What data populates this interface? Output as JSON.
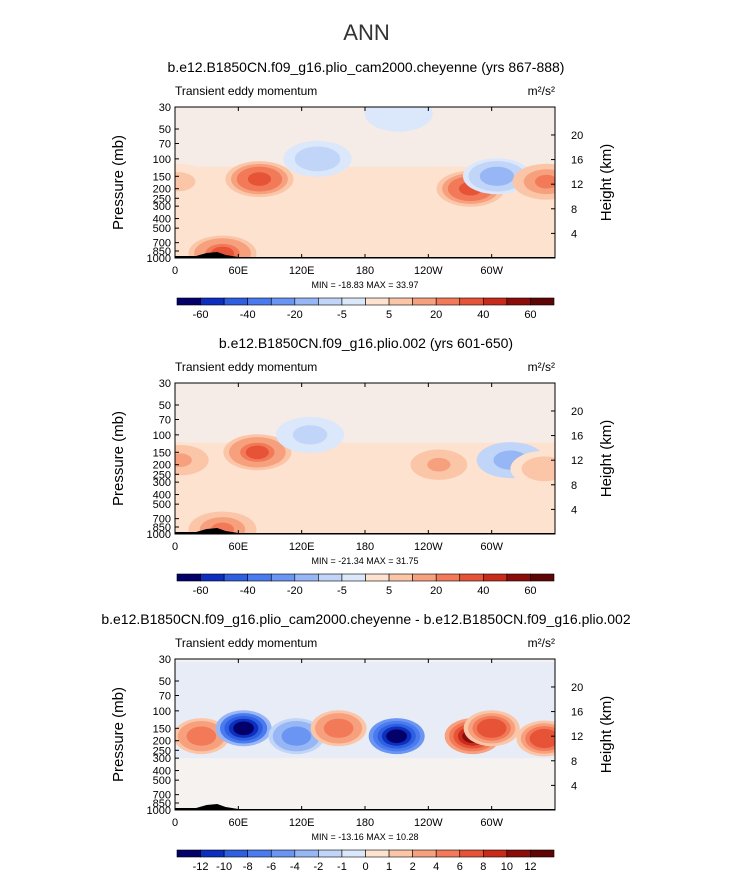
{
  "page_title": "ANN",
  "chart_data": [
    {
      "type": "heatmap",
      "title": "b.e12.B1850CN.f09_g16.plio_cam2000.cheyenne (yrs 867-888)",
      "subtitle": "Transient eddy momentum",
      "units": "m²/s²",
      "xlabel": "",
      "ylabel": "Pressure (mb)",
      "ylabel_right": "Height (km)",
      "x_ticks": [
        "0",
        "60E",
        "120E",
        "180",
        "120W",
        "60W"
      ],
      "y_ticks": [
        "30",
        "50",
        "70",
        "100",
        "150",
        "200",
        "250",
        "300",
        "400",
        "500",
        "700",
        "850",
        "1000"
      ],
      "y_ticks_right": [
        "20",
        "16",
        "12",
        "8",
        "4"
      ],
      "ylim": [
        1000,
        30
      ],
      "y_scale": "log",
      "stats": "MIN = -18.83   MAX =  33.97",
      "min": -18.83,
      "max": 33.97,
      "colorbar_labels": [
        "-60",
        "-40",
        "-20",
        "-5",
        "5",
        "20",
        "40",
        "60"
      ],
      "features": [
        {
          "lon": 3,
          "p": 170,
          "value": 10
        },
        {
          "lon": 80,
          "p": 160,
          "value": 35
        },
        {
          "lon": 135,
          "p": 100,
          "value": -12
        },
        {
          "lon": 212,
          "p": 35,
          "value": -5
        },
        {
          "lon": 280,
          "p": 200,
          "value": 34
        },
        {
          "lon": 305,
          "p": 150,
          "value": -18
        },
        {
          "lon": 352,
          "p": 170,
          "value": 25
        },
        {
          "lon": 45,
          "p": 900,
          "value": 30
        }
      ]
    },
    {
      "type": "heatmap",
      "title": "b.e12.B1850CN.f09_g16.plio.002 (yrs 601-650)",
      "subtitle": "Transient eddy momentum",
      "units": "m²/s²",
      "xlabel": "",
      "ylabel": "Pressure (mb)",
      "ylabel_right": "Height (km)",
      "x_ticks": [
        "0",
        "60E",
        "120E",
        "180",
        "120W",
        "60W"
      ],
      "y_ticks": [
        "30",
        "50",
        "70",
        "100",
        "150",
        "200",
        "250",
        "300",
        "400",
        "500",
        "700",
        "850",
        "1000"
      ],
      "y_ticks_right": [
        "20",
        "16",
        "12",
        "8",
        "4"
      ],
      "ylim": [
        1000,
        30
      ],
      "y_scale": "log",
      "stats": "MIN = -21.34   MAX =  31.75",
      "min": -21.34,
      "max": 31.75,
      "colorbar_labels": [
        "-60",
        "-40",
        "-20",
        "-5",
        "5",
        "20",
        "40",
        "60"
      ],
      "features": [
        {
          "lon": 5,
          "p": 180,
          "value": 15
        },
        {
          "lon": 78,
          "p": 150,
          "value": 32
        },
        {
          "lon": 128,
          "p": 100,
          "value": -10
        },
        {
          "lon": 250,
          "p": 200,
          "value": 15
        },
        {
          "lon": 318,
          "p": 180,
          "value": -21
        },
        {
          "lon": 350,
          "p": 220,
          "value": 12
        },
        {
          "lon": 45,
          "p": 900,
          "value": 25
        }
      ]
    },
    {
      "type": "heatmap",
      "title": "b.e12.B1850CN.f09_g16.plio_cam2000.cheyenne - b.e12.B1850CN.f09_g16.plio.002",
      "subtitle": "Transient eddy momentum",
      "units": "m²/s²",
      "xlabel": "",
      "ylabel": "Pressure (mb)",
      "ylabel_right": "Height (km)",
      "x_ticks": [
        "0",
        "60E",
        "120E",
        "180",
        "120W",
        "60W"
      ],
      "y_ticks": [
        "30",
        "50",
        "70",
        "100",
        "150",
        "200",
        "250",
        "300",
        "400",
        "500",
        "700",
        "850",
        "1000"
      ],
      "y_ticks_right": [
        "20",
        "16",
        "12",
        "8",
        "4"
      ],
      "ylim": [
        1000,
        30
      ],
      "y_scale": "log",
      "stats": "MIN = -13.16   MAX =  10.28",
      "min": -13.16,
      "max": 10.28,
      "colorbar_labels": [
        "-12",
        "-10",
        "-8",
        "-6",
        "-4",
        "-2",
        "-1",
        "0",
        "1",
        "2",
        "4",
        "6",
        "8",
        "10",
        "12"
      ],
      "features": [
        {
          "lon": 25,
          "p": 180,
          "value": 6
        },
        {
          "lon": 65,
          "p": 150,
          "value": -12
        },
        {
          "lon": 115,
          "p": 180,
          "value": -6
        },
        {
          "lon": 155,
          "p": 150,
          "value": 6
        },
        {
          "lon": 210,
          "p": 180,
          "value": -13
        },
        {
          "lon": 282,
          "p": 180,
          "value": 10
        },
        {
          "lon": 300,
          "p": 150,
          "value": 8
        },
        {
          "lon": 350,
          "p": 190,
          "value": 8
        }
      ]
    }
  ],
  "colors": {
    "scale_main": [
      "#03006a",
      "#0c2fbf",
      "#2e5fe0",
      "#4a7af0",
      "#6b95f2",
      "#97b6f5",
      "#c0d5f8",
      "#dbe7fb",
      "#fde2cf",
      "#fbc6a8",
      "#f7a07e",
      "#f27a58",
      "#e65336",
      "#c92b1b",
      "#8a0d0a",
      "#5e0606"
    ],
    "scale_diff": [
      "#03006a",
      "#0c2fbf",
      "#2e5fe0",
      "#4a7af0",
      "#6b95f2",
      "#97b6f5",
      "#c0d5f8",
      "#dbe7fb",
      "#fde2cf",
      "#fbc6a8",
      "#f7a07e",
      "#f27a58",
      "#e65336",
      "#c92b1b",
      "#8a0d0a",
      "#5e0606"
    ],
    "background_pos": "#fde2cf",
    "background_neg": "#dbe7fb",
    "topography": "#000000"
  }
}
